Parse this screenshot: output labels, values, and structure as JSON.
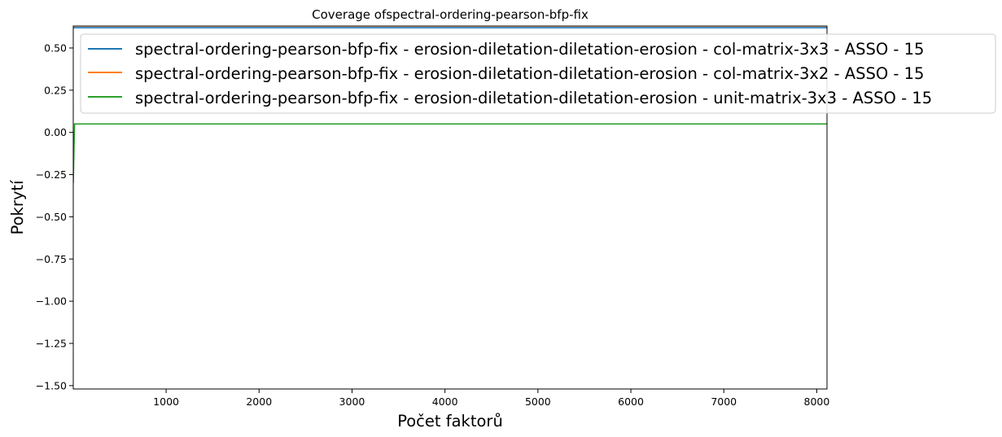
{
  "chart_data": {
    "type": "line",
    "title": "Coverage ofspectral-ordering-pearson-bfp-fix",
    "xlabel": "Počet faktorů",
    "ylabel": "Pokrytí",
    "xlim": [
      1,
      8110
    ],
    "ylim": [
      -1.52,
      0.63
    ],
    "x_ticks": [
      1000,
      2000,
      3000,
      4000,
      5000,
      6000,
      7000,
      8000
    ],
    "x_tick_labels": [
      "1000",
      "2000",
      "3000",
      "4000",
      "5000",
      "6000",
      "7000",
      "8000"
    ],
    "y_ticks": [
      0.5,
      0.25,
      0.0,
      -0.25,
      -0.5,
      -0.75,
      -1.0,
      -1.25,
      -1.5
    ],
    "y_tick_labels": [
      "0.50",
      "0.25",
      "0.00",
      "−0.25",
      "−0.50",
      "−0.75",
      "−1.00",
      "−1.25",
      "−1.50"
    ],
    "grid": false,
    "legend_position": "upper-right",
    "series": [
      {
        "name": "spectral-ordering-pearson-bfp-fix - erosion-diletation-diletation-erosion - col-matrix-3x3 - ASSO - 15",
        "color": "#1f77b4",
        "x": [
          1,
          8110
        ],
        "y": [
          0.62,
          0.62
        ]
      },
      {
        "name": "spectral-ordering-pearson-bfp-fix - erosion-diletation-diletation-erosion - col-matrix-3x2 - ASSO - 15",
        "color": "#ff7f0e",
        "x": [
          1,
          8110
        ],
        "y": [
          0.63,
          0.63
        ]
      },
      {
        "name": "spectral-ordering-pearson-bfp-fix - erosion-diletation-diletation-erosion - unit-matrix-3x3 - ASSO - 15",
        "color": "#2ca02c",
        "x": [
          1,
          15,
          8110
        ],
        "y": [
          -0.3,
          0.05,
          0.05
        ]
      }
    ]
  }
}
